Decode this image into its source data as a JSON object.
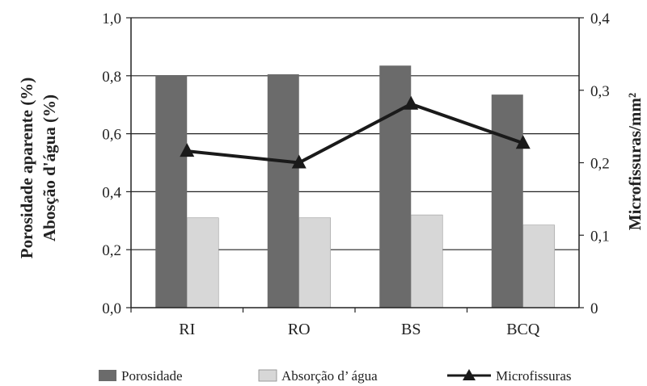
{
  "chart_data": {
    "type": "bar",
    "categories": [
      "RI",
      "RO",
      "BS",
      "BCQ"
    ],
    "series": [
      {
        "name": "Porosidade",
        "type": "bar",
        "axis": "left",
        "color": "#6b6b6b",
        "values": [
          0.8,
          0.805,
          0.835,
          0.735
        ]
      },
      {
        "name": "Absorção d’ água",
        "type": "bar",
        "axis": "left",
        "color": "#d7d7d7",
        "values": [
          0.31,
          0.31,
          0.32,
          0.285
        ]
      },
      {
        "name": "Microfissuras",
        "type": "line",
        "axis": "right",
        "color": "#1a1a1a",
        "marker": "triangle",
        "values": [
          0.216,
          0.2,
          0.281,
          0.227
        ]
      }
    ],
    "ylabel_left_line1": "Porosidade aparente (%)",
    "ylabel_left_line2": "Abosção d'água (%)",
    "ylabel_right": "Microfissuras/mm²",
    "ylim_left": [
      0,
      1.0
    ],
    "ylim_right": [
      0,
      0.4
    ],
    "yticks_left": [
      "0,0",
      "0,2",
      "0,4",
      "0,6",
      "0,8",
      "1,0"
    ],
    "yticks_right": [
      "0",
      "0,1",
      "0,2",
      "0,3",
      "0,4"
    ],
    "grid": true,
    "legend_position": "bottom"
  }
}
